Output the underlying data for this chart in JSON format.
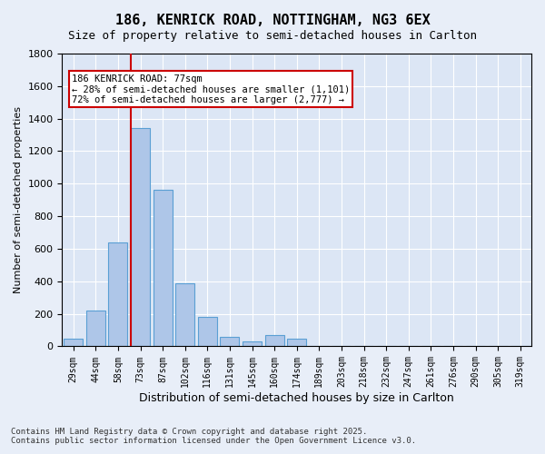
{
  "title1": "186, KENRICK ROAD, NOTTINGHAM, NG3 6EX",
  "title2": "Size of property relative to semi-detached houses in Carlton",
  "xlabel": "Distribution of semi-detached houses by size in Carlton",
  "ylabel": "Number of semi-detached properties",
  "categories": [
    "29sqm",
    "44sqm",
    "58sqm",
    "73sqm",
    "87sqm",
    "102sqm",
    "116sqm",
    "131sqm",
    "145sqm",
    "160sqm",
    "174sqm",
    "189sqm",
    "203sqm",
    "218sqm",
    "232sqm",
    "247sqm",
    "261sqm",
    "276sqm",
    "290sqm",
    "305sqm",
    "319sqm"
  ],
  "values": [
    50,
    220,
    640,
    1340,
    960,
    390,
    180,
    60,
    30,
    70,
    50,
    0,
    0,
    0,
    0,
    0,
    0,
    0,
    0,
    0,
    0
  ],
  "bar_color": "#aec6e8",
  "bar_edge_color": "#5a9fd4",
  "vline_x": 3,
  "vline_color": "#cc0000",
  "annotation_title": "186 KENRICK ROAD: 77sqm",
  "annotation_line1": "← 28% of semi-detached houses are smaller (1,101)",
  "annotation_line2": "72% of semi-detached houses are larger (2,777) →",
  "annotation_box_color": "#cc0000",
  "ylim": [
    0,
    1800
  ],
  "yticks": [
    0,
    200,
    400,
    600,
    800,
    1000,
    1200,
    1400,
    1600,
    1800
  ],
  "footer1": "Contains HM Land Registry data © Crown copyright and database right 2025.",
  "footer2": "Contains public sector information licensed under the Open Government Licence v3.0.",
  "bg_color": "#e8eef8",
  "plot_bg_color": "#dce6f5"
}
